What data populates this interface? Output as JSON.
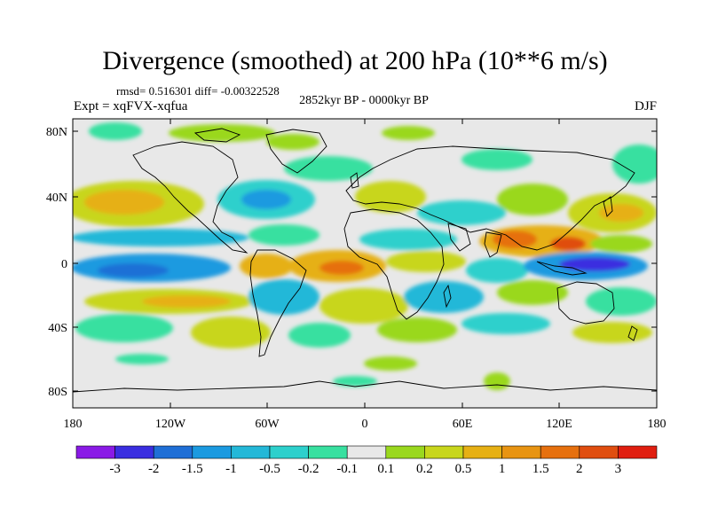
{
  "title": "Divergence (smoothed) at 200 hPa (10**6 m/s)",
  "stats_line": "rmsd= 0.516301 diff= -0.00322528",
  "period": "2852kyr BP - 0000kyr BP",
  "experiment": "Expt = xqFVX-xqfua",
  "season": "DJF",
  "lat_ticks": [
    "80N",
    "40N",
    "0",
    "40S",
    "80S"
  ],
  "lon_ticks": [
    "180",
    "120W",
    "60W",
    "0",
    "60E",
    "120E",
    "180"
  ],
  "colorbar": {
    "colors": [
      "#8a1ae6",
      "#3a2ee0",
      "#1f6fd6",
      "#1b9ae0",
      "#24b8d8",
      "#2dd0cc",
      "#38e0a0",
      "#e8e8e8",
      "#9ad81e",
      "#c8d61c",
      "#e6b014",
      "#e89412",
      "#e6700e",
      "#e04e10",
      "#e01e10"
    ],
    "labels": [
      "-3",
      "-2",
      "-1.5",
      "-1",
      "-0.5",
      "-0.2",
      "-0.1",
      "0.1",
      "0.2",
      "0.5",
      "1",
      "1.5",
      "2",
      "3"
    ]
  },
  "colors": {
    "land_outline": "#000000",
    "background": "#e8e8e8"
  }
}
